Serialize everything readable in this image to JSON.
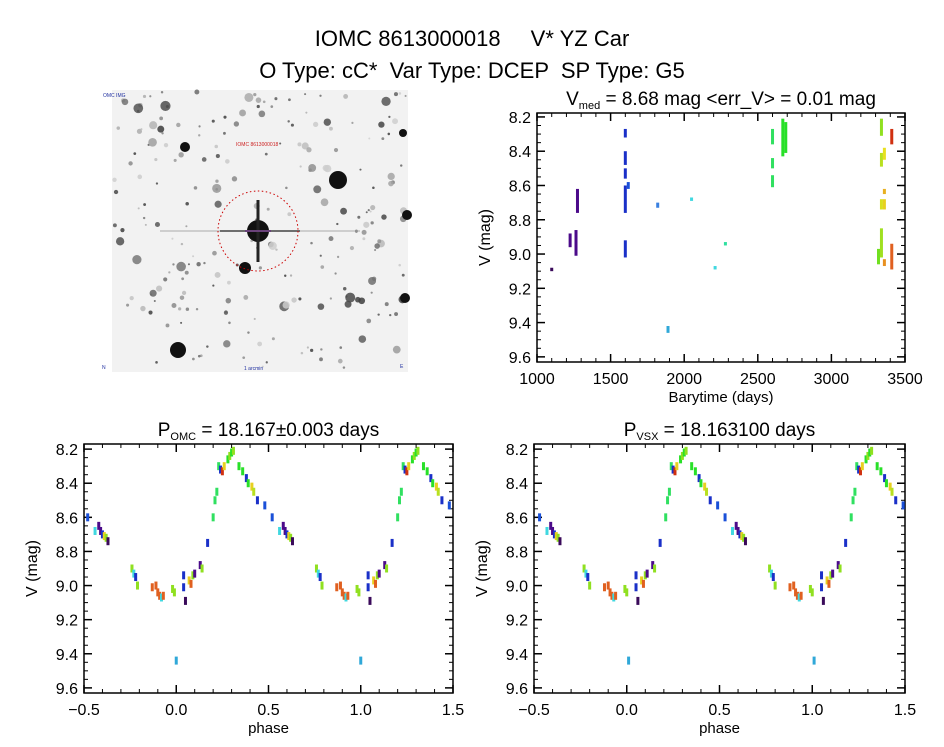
{
  "header": {
    "title_id": "IOMC 8613000018",
    "title_name": "V* YZ Car",
    "subtitle": "O Type: cC*  Var Type: DCEP  SP Type: G5"
  },
  "image": {
    "label_top_left": "OMC IMG",
    "label_target": "IOMC 8613000018",
    "label_bottom": "1 arcmin",
    "label_bottom_left": "N",
    "label_bottom_right": "E",
    "circle_color": "#cc0000"
  },
  "chart_data": [
    {
      "id": "timeseries",
      "type": "scatter",
      "title_main": "V",
      "title_sub": "med",
      "title_rest": " = 8.68 mag <err_V> = 0.01 mag",
      "xlabel": "Barytime (days)",
      "ylabel": "V (mag)",
      "xlim": [
        1000,
        3500
      ],
      "ylim": [
        8.177,
        9.63
      ],
      "y_inverted": true,
      "xticks": [
        1000,
        1500,
        2000,
        2500,
        3000,
        3500
      ],
      "xtick_labels": [
        "1000",
        "1500",
        "2000",
        "2500",
        "3000",
        "3500"
      ],
      "yticks": [
        8.2,
        8.4,
        8.6,
        8.8,
        9.0,
        9.2,
        9.4,
        9.6
      ],
      "ytick_labels": [
        "8.2",
        "8.4",
        "8.6",
        "8.8",
        "9.0",
        "9.2",
        "9.4",
        "9.6"
      ],
      "segments": [
        {
          "t": 1100,
          "v1": 9.08,
          "v2": 9.1,
          "color": "#3a0a5a"
        },
        {
          "t": 1225,
          "v1": 8.88,
          "v2": 8.96,
          "color": "#4b0a8a"
        },
        {
          "t": 1265,
          "v1": 8.86,
          "v2": 9.01,
          "color": "#4b0a8a"
        },
        {
          "t": 1275,
          "v1": 8.62,
          "v2": 8.76,
          "color": "#4b0a8a"
        },
        {
          "t": 1600,
          "v1": 8.27,
          "v2": 8.32,
          "color": "#1a30c8"
        },
        {
          "t": 1600,
          "v1": 8.4,
          "v2": 8.48,
          "color": "#1a30c8"
        },
        {
          "t": 1600,
          "v1": 8.5,
          "v2": 8.56,
          "color": "#1a30c8"
        },
        {
          "t": 1600,
          "v1": 8.6,
          "v2": 8.76,
          "color": "#1a30c8"
        },
        {
          "t": 1600,
          "v1": 8.92,
          "v2": 9.02,
          "color": "#1a30c8"
        },
        {
          "t": 1620,
          "v1": 8.58,
          "v2": 8.62,
          "color": "#1a50d8"
        },
        {
          "t": 1820,
          "v1": 8.7,
          "v2": 8.73,
          "color": "#3a80e0"
        },
        {
          "t": 1890,
          "v1": 9.42,
          "v2": 9.46,
          "color": "#30a8d8"
        },
        {
          "t": 2050,
          "v1": 8.67,
          "v2": 8.69,
          "color": "#40d8e0"
        },
        {
          "t": 2210,
          "v1": 9.07,
          "v2": 9.09,
          "color": "#40d8e0"
        },
        {
          "t": 2280,
          "v1": 8.93,
          "v2": 8.95,
          "color": "#30e0a0"
        },
        {
          "t": 2600,
          "v1": 8.27,
          "v2": 8.36,
          "color": "#30e060"
        },
        {
          "t": 2600,
          "v1": 8.44,
          "v2": 8.5,
          "color": "#30e060"
        },
        {
          "t": 2600,
          "v1": 8.54,
          "v2": 8.61,
          "color": "#30e060"
        },
        {
          "t": 2670,
          "v1": 8.21,
          "v2": 8.43,
          "color": "#28e028"
        },
        {
          "t": 2690,
          "v1": 8.23,
          "v2": 8.41,
          "color": "#28e028"
        },
        {
          "t": 3320,
          "v1": 8.97,
          "v2": 9.06,
          "color": "#70e020"
        },
        {
          "t": 3340,
          "v1": 8.21,
          "v2": 8.31,
          "color": "#90e020"
        },
        {
          "t": 3340,
          "v1": 8.41,
          "v2": 8.49,
          "color": "#b8e020"
        },
        {
          "t": 3340,
          "v1": 8.68,
          "v2": 8.74,
          "color": "#d8e020"
        },
        {
          "t": 3340,
          "v1": 8.85,
          "v2": 9.02,
          "color": "#a0e020"
        },
        {
          "t": 3360,
          "v1": 8.38,
          "v2": 8.45,
          "color": "#e8e020"
        },
        {
          "t": 3360,
          "v1": 8.62,
          "v2": 8.65,
          "color": "#e8b020"
        },
        {
          "t": 3360,
          "v1": 8.68,
          "v2": 8.74,
          "color": "#e8d020"
        },
        {
          "t": 3360,
          "v1": 9.03,
          "v2": 9.07,
          "color": "#e89020"
        },
        {
          "t": 3410,
          "v1": 8.27,
          "v2": 8.36,
          "color": "#d03010"
        },
        {
          "t": 3410,
          "v1": 8.94,
          "v2": 9.09,
          "color": "#e06020"
        }
      ]
    },
    {
      "id": "phase_omc",
      "type": "scatter",
      "title_main": "P",
      "title_sub": "OMC",
      "title_rest": " = 18.167±0.003 days",
      "xlabel": "phase",
      "ylabel": "V (mag)",
      "xlim": [
        -0.5,
        1.5
      ],
      "ylim": [
        8.17,
        9.63
      ],
      "y_inverted": true,
      "phase_repeats": [
        -1,
        0,
        1
      ],
      "xticks": [
        -0.5,
        0.0,
        0.5,
        1.0,
        1.5
      ],
      "xtick_labels": [
        "-0.5",
        "0.0",
        "0.5",
        "1.0",
        "1.5"
      ],
      "yticks": [
        8.2,
        8.4,
        8.6,
        8.8,
        9.0,
        9.2,
        9.4,
        9.6
      ],
      "ytick_labels": [
        "8.2",
        "8.4",
        "8.6",
        "8.8",
        "9.0",
        "9.2",
        "9.4",
        "9.6"
      ],
      "points": [
        {
          "p": 0.52,
          "v": 8.6,
          "color": "#1a50d8"
        },
        {
          "p": 0.56,
          "v": 8.68,
          "color": "#40d8e0"
        },
        {
          "p": 0.58,
          "v": 8.65,
          "color": "#4b0a8a"
        },
        {
          "p": 0.59,
          "v": 8.68,
          "color": "#4b0a8a"
        },
        {
          "p": 0.6,
          "v": 8.7,
          "color": "#1a30c8"
        },
        {
          "p": 0.61,
          "v": 8.71,
          "color": "#e8d020"
        },
        {
          "p": 0.62,
          "v": 8.72,
          "color": "#90e020"
        },
        {
          "p": 0.63,
          "v": 8.74,
          "color": "#3a0a5a"
        },
        {
          "p": 0.76,
          "v": 8.9,
          "color": "#90e020"
        },
        {
          "p": 0.77,
          "v": 8.93,
          "color": "#40d8e0"
        },
        {
          "p": 0.78,
          "v": 8.95,
          "color": "#1a30c8"
        },
        {
          "p": 0.79,
          "v": 9.0,
          "color": "#90e020"
        },
        {
          "p": 0.87,
          "v": 9.01,
          "color": "#e06020"
        },
        {
          "p": 0.89,
          "v": 9.0,
          "color": "#e06020"
        },
        {
          "p": 0.9,
          "v": 9.04,
          "color": "#e06020"
        },
        {
          "p": 0.91,
          "v": 9.06,
          "color": "#e06020"
        },
        {
          "p": 0.92,
          "v": 9.07,
          "color": "#40d8e0"
        },
        {
          "p": 0.93,
          "v": 9.06,
          "color": "#e06020"
        },
        {
          "p": 0.98,
          "v": 9.02,
          "color": "#90e020"
        },
        {
          "p": 0.99,
          "v": 9.04,
          "color": "#90e020"
        },
        {
          "p": 0.0,
          "v": 9.44,
          "color": "#30a8d8"
        },
        {
          "p": 0.04,
          "v": 8.94,
          "color": "#1a30c8"
        },
        {
          "p": 0.04,
          "v": 9.01,
          "color": "#1a30c8"
        },
        {
          "p": 0.05,
          "v": 9.09,
          "color": "#3a0a5a"
        },
        {
          "p": 0.07,
          "v": 8.97,
          "color": "#e8d020"
        },
        {
          "p": 0.08,
          "v": 8.99,
          "color": "#e06020"
        },
        {
          "p": 0.09,
          "v": 8.94,
          "color": "#90e020"
        },
        {
          "p": 0.1,
          "v": 8.93,
          "color": "#4b0a8a"
        },
        {
          "p": 0.13,
          "v": 8.88,
          "color": "#4b0a8a"
        },
        {
          "p": 0.14,
          "v": 8.9,
          "color": "#90e020"
        },
        {
          "p": 0.17,
          "v": 8.75,
          "color": "#1a30c8"
        },
        {
          "p": 0.2,
          "v": 8.6,
          "color": "#30e060"
        },
        {
          "p": 0.21,
          "v": 8.5,
          "color": "#30e060"
        },
        {
          "p": 0.22,
          "v": 8.45,
          "color": "#30e060"
        },
        {
          "p": 0.23,
          "v": 8.3,
          "color": "#30e060"
        },
        {
          "p": 0.24,
          "v": 8.32,
          "color": "#1a30c8"
        },
        {
          "p": 0.25,
          "v": 8.33,
          "color": "#d03010"
        },
        {
          "p": 0.26,
          "v": 8.3,
          "color": "#e8d020"
        },
        {
          "p": 0.28,
          "v": 8.26,
          "color": "#28e028"
        },
        {
          "p": 0.29,
          "v": 8.24,
          "color": "#90e020"
        },
        {
          "p": 0.3,
          "v": 8.22,
          "color": "#28e028"
        },
        {
          "p": 0.31,
          "v": 8.21,
          "color": "#90e020"
        },
        {
          "p": 0.34,
          "v": 8.3,
          "color": "#28e028"
        },
        {
          "p": 0.36,
          "v": 8.33,
          "color": "#28e028"
        },
        {
          "p": 0.38,
          "v": 8.37,
          "color": "#1a30c8"
        },
        {
          "p": 0.39,
          "v": 8.4,
          "color": "#28e028"
        },
        {
          "p": 0.41,
          "v": 8.42,
          "color": "#e8d020"
        },
        {
          "p": 0.42,
          "v": 8.45,
          "color": "#b8e020"
        },
        {
          "p": 0.44,
          "v": 8.5,
          "color": "#1a30c8"
        },
        {
          "p": 0.48,
          "v": 8.53,
          "color": "#1a50d8"
        }
      ]
    },
    {
      "id": "phase_vsx",
      "type": "scatter",
      "title_main": "P",
      "title_sub": "VSX",
      "title_rest": " = 18.163100 days",
      "xlabel": "phase",
      "ylabel": "V (mag)",
      "xlim": [
        -0.5,
        1.5
      ],
      "ylim": [
        8.17,
        9.63
      ],
      "y_inverted": true,
      "phase_repeats": [
        -1,
        0,
        1
      ],
      "phase_shift": 0.01,
      "xticks": [
        -0.5,
        0.0,
        0.5,
        1.0,
        1.5
      ],
      "xtick_labels": [
        "-0.5",
        "0.0",
        "0.5",
        "1.0",
        "1.5"
      ],
      "yticks": [
        8.2,
        8.4,
        8.6,
        8.8,
        9.0,
        9.2,
        9.4,
        9.6
      ],
      "ytick_labels": [
        "8.2",
        "8.4",
        "8.6",
        "8.8",
        "9.0",
        "9.2",
        "9.4",
        "9.6"
      ],
      "points_same_as": "phase_omc"
    }
  ]
}
